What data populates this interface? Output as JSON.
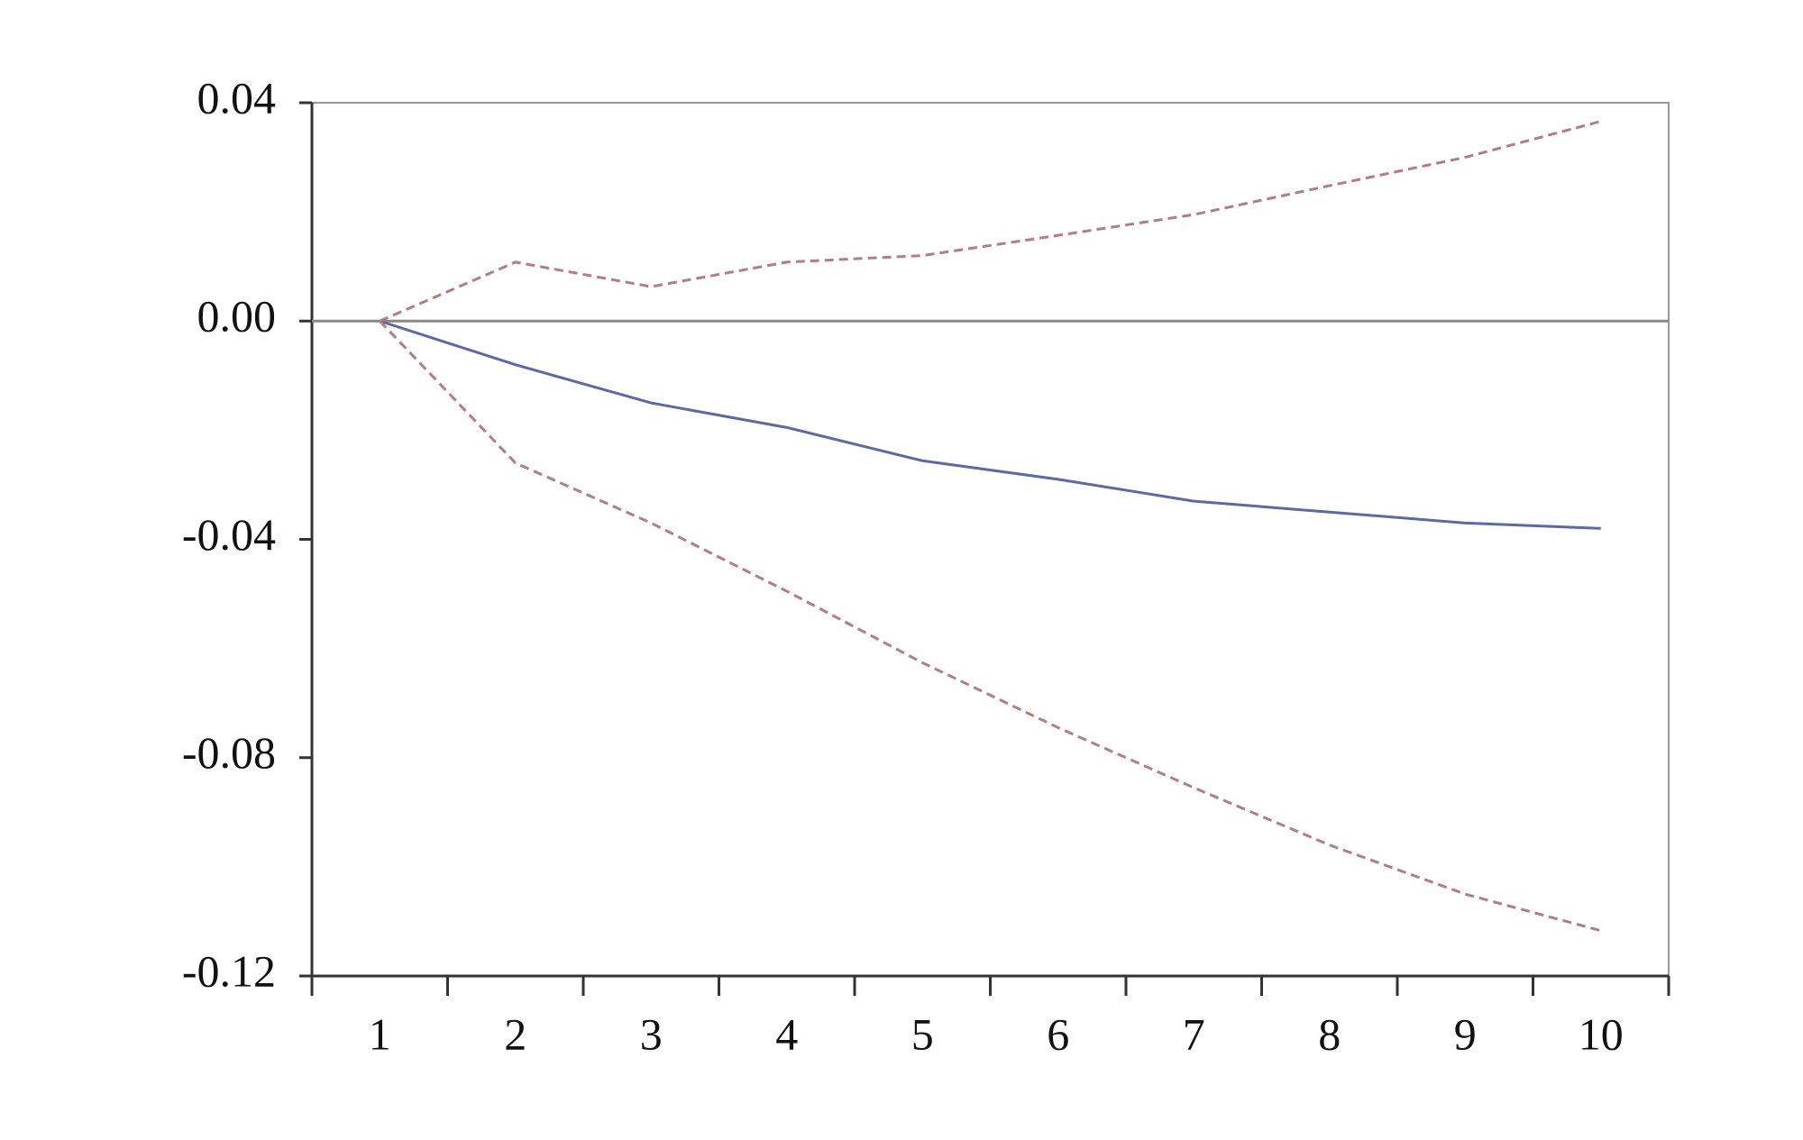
{
  "chart_data": {
    "type": "line",
    "categories": [
      "1",
      "2",
      "3",
      "4",
      "5",
      "6",
      "7",
      "8",
      "9",
      "10"
    ],
    "series": [
      {
        "color": "#5b6aa6",
        "dash": false,
        "values": [
          0,
          -0.008,
          -0.015,
          -0.0195,
          -0.0256,
          -0.029,
          -0.033,
          -0.035,
          -0.037,
          -0.038
        ]
      },
      {
        "color": "#b27d83",
        "dash": true,
        "values": [
          0,
          0.0108,
          0.0063,
          0.0108,
          0.012,
          0.0157,
          0.0195,
          0.0248,
          0.03,
          0.0366
        ]
      },
      {
        "color": "#b27d83",
        "dash": true,
        "values": [
          0,
          -0.026,
          -0.037,
          -0.0495,
          -0.0626,
          -0.0745,
          -0.0855,
          -0.096,
          -0.105,
          -0.1117
        ]
      }
    ],
    "ylim": [
      -0.12,
      0.04
    ],
    "yticks": [
      0.04,
      {
        "value": 0,
        "label": "0.00"
      },
      -0.04,
      -0.08,
      -0.12
    ],
    "zero_line": true
  }
}
